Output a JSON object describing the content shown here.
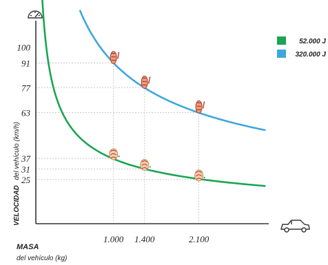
{
  "chart_data": {
    "type": "line",
    "title": "",
    "xlabel_main": "MASA",
    "xlabel_sub": "del vehículo (kg)",
    "ylabel_main": "VELOCIDAD",
    "ylabel_sub": "del vehículo (km/h)",
    "xlim": [
      0,
      3000
    ],
    "ylim": [
      0,
      115
    ],
    "x_ticks": [
      {
        "value": 1000,
        "label": "1.000"
      },
      {
        "value": 1400,
        "label": "1.400"
      },
      {
        "value": 2100,
        "label": "2.100"
      }
    ],
    "y_ticks": [
      {
        "value": 100,
        "label": "100"
      },
      {
        "value": 91,
        "label": "91"
      },
      {
        "value": 77,
        "label": "77"
      },
      {
        "value": 63,
        "label": "63"
      },
      {
        "value": 37,
        "label": "37"
      },
      {
        "value": 31,
        "label": "31"
      },
      {
        "value": 25,
        "label": "25"
      }
    ],
    "legend_position": "top-right",
    "series": [
      {
        "name": "52.000 J",
        "color": "#1aa552",
        "energy_j": 52000,
        "curve_range": [
          60,
          2950
        ],
        "points": [
          {
            "x": 1000,
            "y": 37
          },
          {
            "x": 1400,
            "y": 31
          },
          {
            "x": 2100,
            "y": 25
          }
        ]
      },
      {
        "name": "320.000 J",
        "color": "#3fa6dd",
        "energy_j": 320000,
        "curve_range": [
          570,
          2950
        ],
        "points": [
          {
            "x": 1000,
            "y": 91
          },
          {
            "x": 1400,
            "y": 77
          },
          {
            "x": 2100,
            "y": 63
          }
        ]
      }
    ],
    "icons": {
      "top": "speedometer-icon",
      "right": "car-icon",
      "markers": "crash-test-dummy-icon"
    }
  }
}
